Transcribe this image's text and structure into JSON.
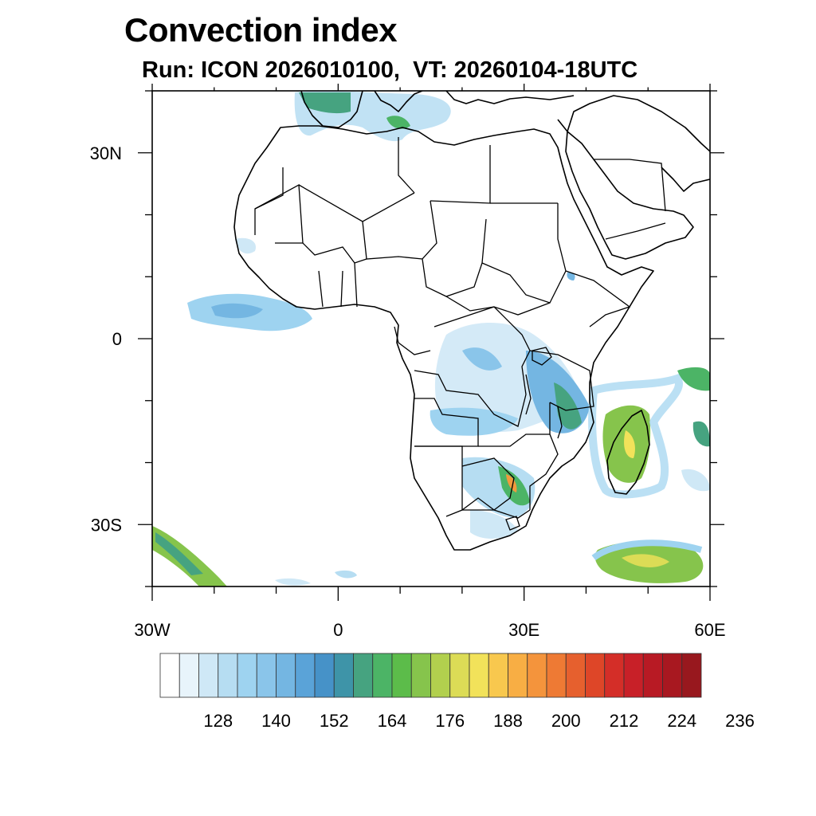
{
  "title": "Convection index",
  "subtitle": "Run: ICON 2026010100,  VT: 20260104-18UTC",
  "map": {
    "extent": {
      "lon_min": -30,
      "lon_max": 60,
      "lat_min": -40,
      "lat_max": 40
    },
    "lat_labels": [
      {
        "lat": 30,
        "text": "30N"
      },
      {
        "lat": 0,
        "text": "0"
      },
      {
        "lat": -30,
        "text": "30S"
      }
    ],
    "lon_labels": [
      {
        "lon": -30,
        "text": "30W"
      },
      {
        "lon": 0,
        "text": "0"
      },
      {
        "lon": 30,
        "text": "30E"
      },
      {
        "lon": 60,
        "text": "60E"
      }
    ],
    "colors": {
      "coast": "#000000",
      "low": "#cfe8f6",
      "mid": "#5aa6d8",
      "green": "#4caf50",
      "yellow": "#e7e160",
      "orange": "#f29a3d"
    }
  },
  "colorbar": {
    "colors": [
      "#ffffff",
      "#e8f4fb",
      "#cfe8f6",
      "#b6ddf2",
      "#9ed3f0",
      "#8ac5ea",
      "#74b6e2",
      "#5aa3d8",
      "#4692c8",
      "#3e94a8",
      "#46a380",
      "#4cb466",
      "#5cbc4a",
      "#86c44c",
      "#b2d04e",
      "#dcdc56",
      "#f2e25a",
      "#f8c84e",
      "#f8ae44",
      "#f4943c",
      "#ee7a34",
      "#e6602e",
      "#de4628",
      "#d42e28",
      "#c82028",
      "#b81a24",
      "#a81820",
      "#98181e"
    ],
    "labels": [
      "128",
      "140",
      "152",
      "164",
      "176",
      "188",
      "200",
      "212",
      "224",
      "236"
    ]
  }
}
